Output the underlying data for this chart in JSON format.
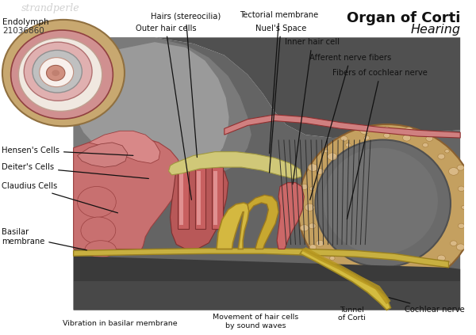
{
  "title1": "Organ of Corti",
  "title2": "Hearing",
  "watermark": "strandperle",
  "watermark_id": "21036860",
  "bg_color": "#ffffff",
  "labels": {
    "endolymph": "Endolymph",
    "hairs": "Hairs (stereocilia)",
    "outer_hair": "Outer hair cells",
    "tectorial": "Tectorial membrane",
    "nuels": "Nuel's Space",
    "inner_hair": "Inner hair cell",
    "afferent": "Afferent nerve fibers",
    "fibers": "Fibers of cochlear nerve",
    "hensen": "Hensen's Cells",
    "deiter": "Deiter's Cells",
    "claudius": "Claudius Cells",
    "basilar": "Basilar\nmembrane",
    "vibration": "Vibration in basilar membrane",
    "movement": "Movement of hair cells\nby sound waves",
    "tunnel": "Tunnel\nof Corti",
    "cochlear": "Cochlear nerve"
  },
  "colors": {
    "bg_white": "#ffffff",
    "dark_bg_main": "#5a5a5a",
    "dark_bg_top": "#404040",
    "dark_bg_grad1": "#686868",
    "gray_mid": "#8a8a8a",
    "gray_light": "#aaaaaa",
    "bone_tan": "#c8a86a",
    "bone_dark": "#8a6830",
    "bone_holes": "#dfc090",
    "pink_tissue": "#c87878",
    "pink_dark": "#a05050",
    "pink_light": "#e8a0a0",
    "pink_med": "#d49090",
    "yellow_mem": "#c8b040",
    "yellow_dark": "#a09020",
    "yellow_light": "#e0d060",
    "red_line": "#cc2020",
    "dark_line": "#202020",
    "text_dark": "#111111",
    "text_gray": "#888888",
    "arrow_yellow": "#d4c020"
  }
}
